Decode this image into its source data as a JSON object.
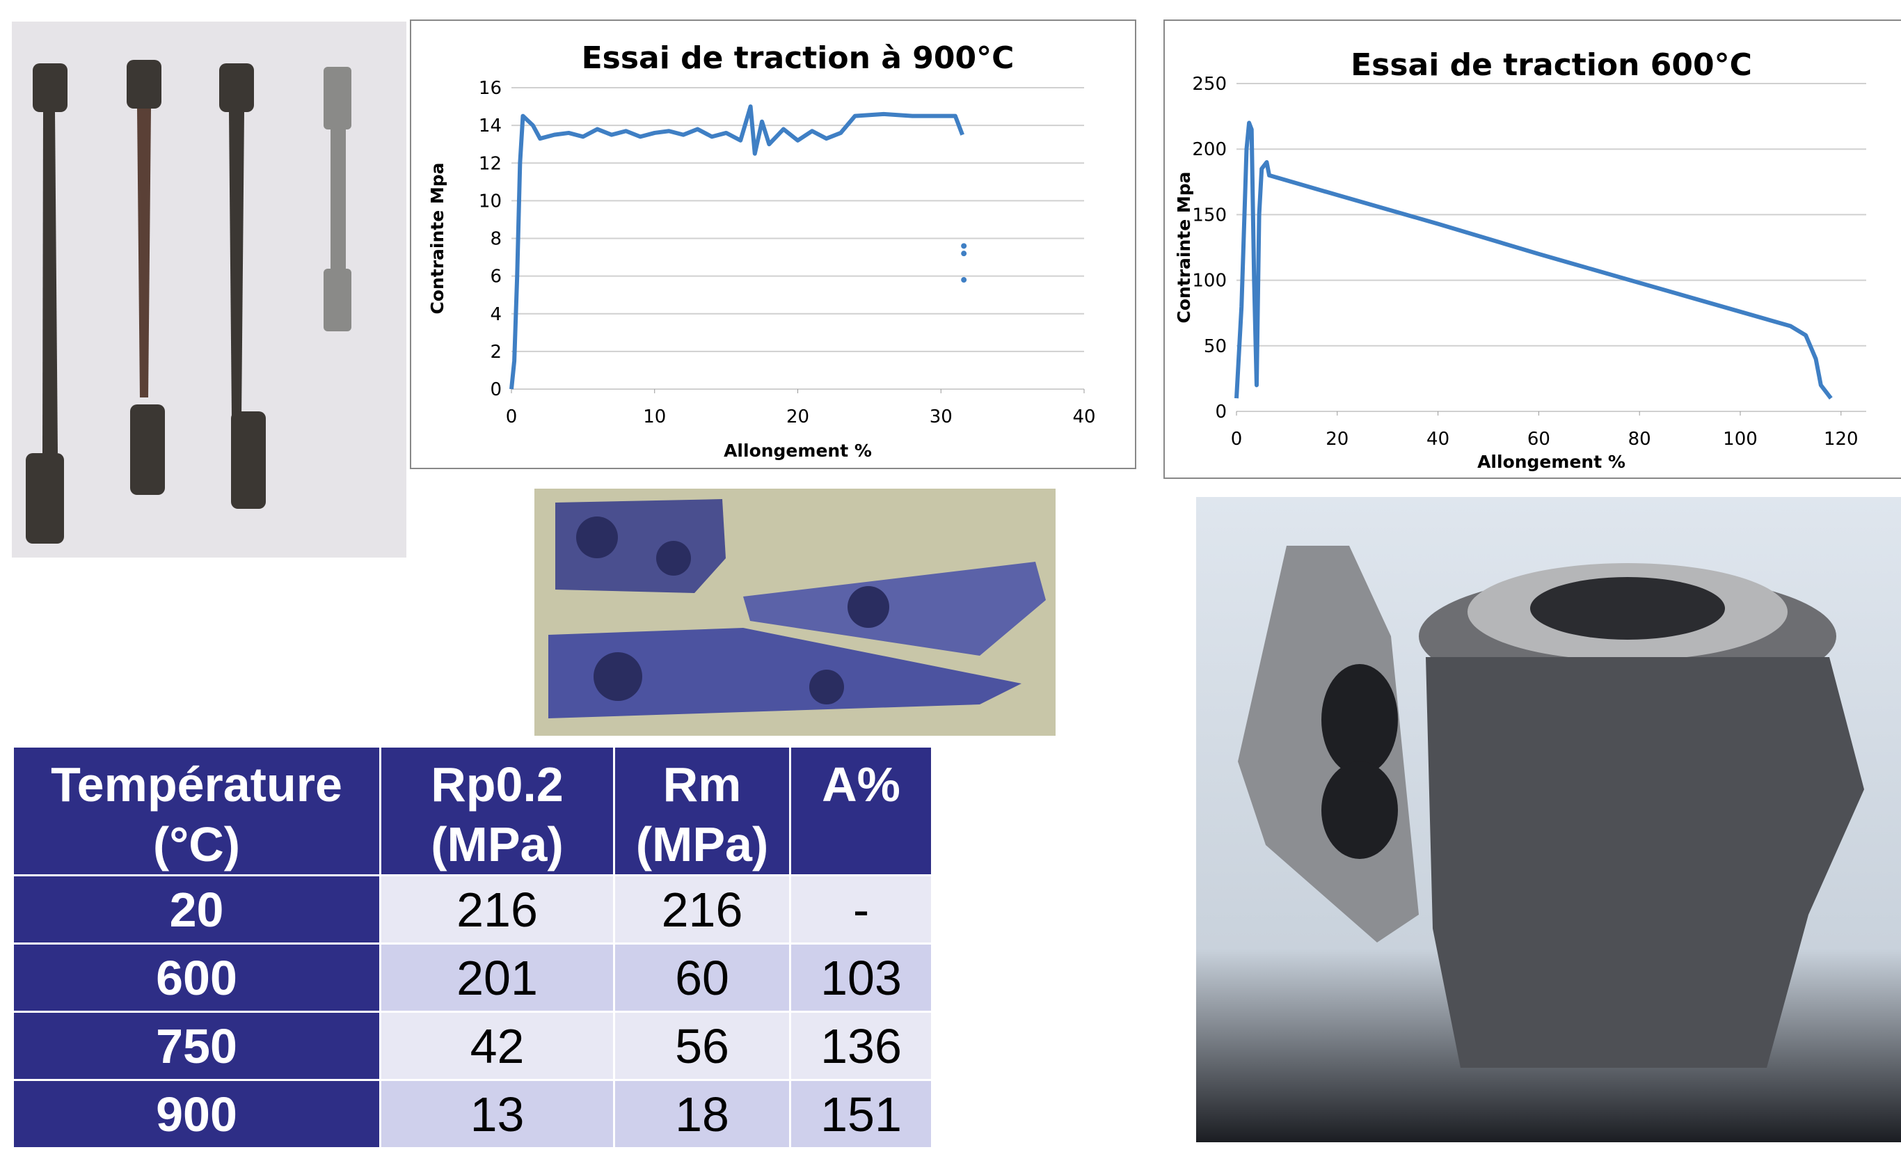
{
  "chart_data": [
    {
      "type": "line",
      "title": "Essai de traction à 900°C",
      "x_label": "Allongement %",
      "y_label": "Contrainte Mpa",
      "xlim": [
        0,
        40
      ],
      "xticks": [
        0,
        10,
        20,
        30,
        40
      ],
      "ylim": [
        0,
        16
      ],
      "yticks": [
        0,
        2,
        4,
        6,
        8,
        10,
        12,
        14,
        16
      ],
      "grid": true,
      "series": [
        {
          "color": "#3f7fc4",
          "line": true,
          "x": [
            0,
            0.2,
            0.4,
            0.6,
            0.8,
            1.5,
            2,
            3,
            4,
            5,
            6,
            7,
            8,
            9,
            10,
            11,
            12,
            13,
            14,
            15,
            16,
            16.7,
            17,
            17.5,
            18,
            19,
            20,
            21,
            22,
            23,
            24,
            26,
            28,
            30,
            31,
            31.5
          ],
          "values": [
            0,
            1.5,
            6,
            12,
            14.5,
            14,
            13.3,
            13.5,
            13.6,
            13.4,
            13.8,
            13.5,
            13.7,
            13.4,
            13.6,
            13.7,
            13.5,
            13.8,
            13.4,
            13.6,
            13.2,
            15,
            12.5,
            14.2,
            13,
            13.8,
            13.2,
            13.7,
            13.3,
            13.6,
            14.5,
            14.6,
            14.5,
            14.5,
            14.5,
            13.5
          ]
        },
        {
          "color": "#3f7fc4",
          "line": false,
          "x": [
            31.6,
            31.6,
            31.6
          ],
          "values": [
            7.6,
            7.2,
            5.8
          ]
        }
      ]
    },
    {
      "type": "line",
      "title": "Essai de traction 600°C",
      "x_label": "Allongement %",
      "y_label": "Contrainte Mpa",
      "xlim": [
        0,
        125
      ],
      "xticks": [
        0,
        20,
        40,
        60,
        80,
        100,
        120
      ],
      "ylim": [
        0,
        250
      ],
      "yticks": [
        0,
        50,
        100,
        150,
        200,
        250
      ],
      "grid": true,
      "series": [
        {
          "color": "#3f7fc4",
          "line": true,
          "x": [
            0,
            1,
            2,
            2.5,
            3,
            3.5,
            4,
            4.5,
            5,
            6,
            6.5,
            20,
            40,
            60,
            80,
            100,
            110,
            113,
            115,
            116,
            118
          ],
          "values": [
            10,
            80,
            200,
            220,
            215,
            100,
            20,
            150,
            185,
            190,
            180,
            165,
            143,
            120,
            98,
            76,
            65,
            58,
            40,
            20,
            10
          ]
        }
      ]
    }
  ],
  "table": {
    "header": [
      "Température (°C)",
      "Rp0.2 (MPa)",
      "Rm (MPa)",
      "A%"
    ],
    "rows": [
      [
        "20",
        "216",
        "216",
        "-"
      ],
      [
        "600",
        "201",
        "60",
        "103"
      ],
      [
        "750",
        "42",
        "56",
        "136"
      ],
      [
        "900",
        "13",
        "18",
        "151"
      ]
    ]
  }
}
